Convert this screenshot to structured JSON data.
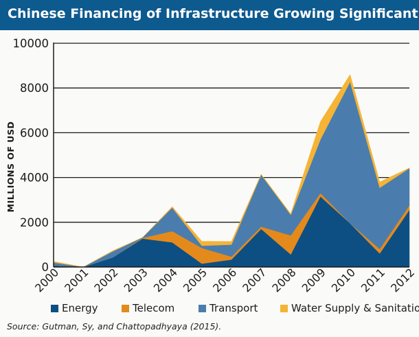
{
  "header": {
    "title": "Chinese Financing of Infrastructure Growing Significantly"
  },
  "source": "Source: Gutman, Sy, and Chattopadhyaya (2015).",
  "chart_data": {
    "type": "area",
    "stacked": true,
    "title": "Chinese Financing of Infrastructure Growing Significantly",
    "xlabel": "",
    "ylabel": "MILLIONS OF USD",
    "categories": [
      "2000",
      "2001",
      "2002",
      "2003",
      "2004",
      "2005",
      "2006",
      "2007",
      "2008",
      "2009",
      "2010",
      "2011",
      "2012"
    ],
    "ylim": [
      0,
      10000
    ],
    "yticks": [
      0,
      2000,
      4000,
      6000,
      8000,
      10000
    ],
    "grid": "horizontal",
    "legend_position": "bottom",
    "series": [
      {
        "name": "Energy",
        "color": "#0d4f82",
        "values": [
          60,
          0,
          430,
          1270,
          1100,
          150,
          330,
          1700,
          560,
          3150,
          1950,
          600,
          2550
        ]
      },
      {
        "name": "Telecom",
        "color": "#e48a1c",
        "values": [
          0,
          0,
          0,
          30,
          500,
          700,
          130,
          100,
          850,
          150,
          0,
          200,
          200
        ]
      },
      {
        "name": "Transport",
        "color": "#4a7dad",
        "values": [
          140,
          0,
          270,
          20,
          1050,
          100,
          540,
          2320,
          920,
          2400,
          6330,
          2740,
          1660
        ]
      },
      {
        "name": "Water Supply & Sanitation",
        "color": "#f5b435",
        "values": [
          50,
          0,
          30,
          0,
          50,
          200,
          140,
          30,
          50,
          800,
          320,
          260,
          20
        ]
      }
    ]
  }
}
